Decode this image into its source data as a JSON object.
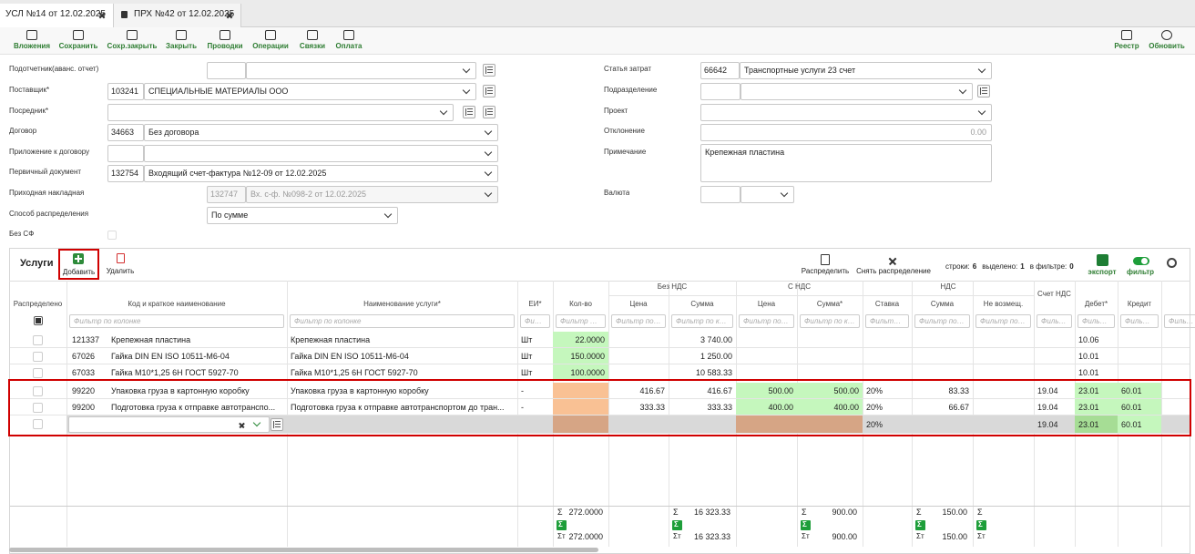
{
  "tabs": [
    "УСЛ №14 от 12.02.2025",
    "ПРХ №42 от 12.02.2025"
  ],
  "toolbar": {
    "left": [
      "Вложения",
      "Сохранить",
      "Сохр.закрыть",
      "Закрыть",
      "Проводки",
      "Операции",
      "Связки",
      "Оплата"
    ],
    "right": [
      "Реестр",
      "Обновить"
    ]
  },
  "form": {
    "left": [
      {
        "label": "Подотчетник(аванс. отчет)"
      },
      {
        "label": "Поставщик*",
        "code": "103241",
        "value": "СПЕЦИАЛЬНЫЕ МАТЕРИАЛЫ ООО"
      },
      {
        "label": "Посредник*"
      },
      {
        "label": "Договор",
        "code": "34663",
        "value": "Без договора"
      },
      {
        "label": "Приложение к договору"
      },
      {
        "label": "Первичный документ",
        "code": "132754",
        "value": "Входящий счет-фактура №12-09 от 12.02.2025"
      },
      {
        "label": "Приходная накладная",
        "code": "132747",
        "value": "Вх. с-ф. №098-2 от 12.02.2025"
      },
      {
        "label": "Способ распределения",
        "value": "По сумме"
      },
      {
        "label": "Без СФ"
      }
    ],
    "right": [
      {
        "label": "Статья затрат",
        "code": "66642",
        "value": "Транспортные услуги 23 счет"
      },
      {
        "label": "Подразделение"
      },
      {
        "label": "Проект"
      },
      {
        "label": "Отклонение",
        "value": "0.00"
      },
      {
        "label": "Примечание",
        "value": "Крепежная пластина"
      },
      {
        "label": "Валюта"
      }
    ]
  },
  "services": {
    "title": "Услуги",
    "add": "Добавить",
    "delete": "Удалить",
    "distribute": "Распределить",
    "undistribute": "Снять распределение",
    "rows_label": "строки:",
    "rows": "6",
    "selected_label": "выделено:",
    "selected": "1",
    "filtered_label": "в фильтре:",
    "filtered": "0",
    "export": "экспорт",
    "filter": "фильтр"
  },
  "table": {
    "groups": [
      "Без НДС",
      "С НДС",
      "НДС"
    ],
    "columns": [
      "Распределено",
      "Код и краткое наименование",
      "Наименование услуги*",
      "ЕИ*",
      "Кол-во",
      "Цена",
      "Сумма",
      "Цена",
      "Сумма*",
      "Ставка",
      "Сумма",
      "Не возмещ.",
      "Счет НДС",
      "Дебет*",
      "Кредит"
    ],
    "filter_placeholder": "Фильтр по колонке",
    "rows": [
      [
        "121337",
        "Крепежная пластина",
        "Крепежная пластина",
        "Шт",
        "22.0000",
        null,
        "3 740.00",
        null,
        null,
        null,
        null,
        null,
        null,
        "10.06",
        null
      ],
      [
        "67026",
        "Гайка DIN EN ISO 10511-M6-04",
        "Гайка DIN EN ISO 10511-M6-04",
        "Шт",
        "150.0000",
        null,
        "1 250.00",
        null,
        null,
        null,
        null,
        null,
        null,
        "10.01",
        null
      ],
      [
        "67033",
        "Гайка М10*1,25 6Н ГОСТ 5927-70",
        "Гайка М10*1,25 6Н ГОСТ 5927-70",
        "Шт",
        "100.0000",
        null,
        "10 583.33",
        null,
        null,
        null,
        null,
        null,
        null,
        "10.01",
        null
      ],
      [
        "99220",
        "Упаковка груза в картонную коробку",
        "Упаковка груза в картонную коробку",
        "-",
        null,
        "416.67",
        "416.67",
        "500.00",
        "500.00",
        "20%",
        "83.33",
        null,
        "19.04",
        "23.01",
        "60.01"
      ],
      [
        "99200",
        "Подготовка груза к отправке автотранспо...",
        "Подготовка груза к отправке автотранспортом до тран...",
        "-",
        null,
        "333.33",
        "333.33",
        "400.00",
        "400.00",
        "20%",
        "66.67",
        null,
        "19.04",
        "23.01",
        "60.01"
      ],
      [
        null,
        null,
        null,
        null,
        null,
        null,
        null,
        null,
        null,
        "20%",
        null,
        null,
        "19.04",
        "23.01",
        "60.01"
      ]
    ],
    "totals": {
      "sigma": "Σ",
      "sigma_t": "Σт",
      "columns": [
        null,
        null,
        null,
        null,
        {
          "sum": "272.0000",
          "total": "272.0000"
        },
        null,
        {
          "sum": "16 323.33",
          "total": "16 323.33"
        },
        null,
        {
          "sum": "900.00",
          "total": "900.00"
        },
        null,
        {
          "sum": "150.00",
          "total": "150.00"
        },
        true,
        null,
        null,
        null
      ]
    }
  }
}
